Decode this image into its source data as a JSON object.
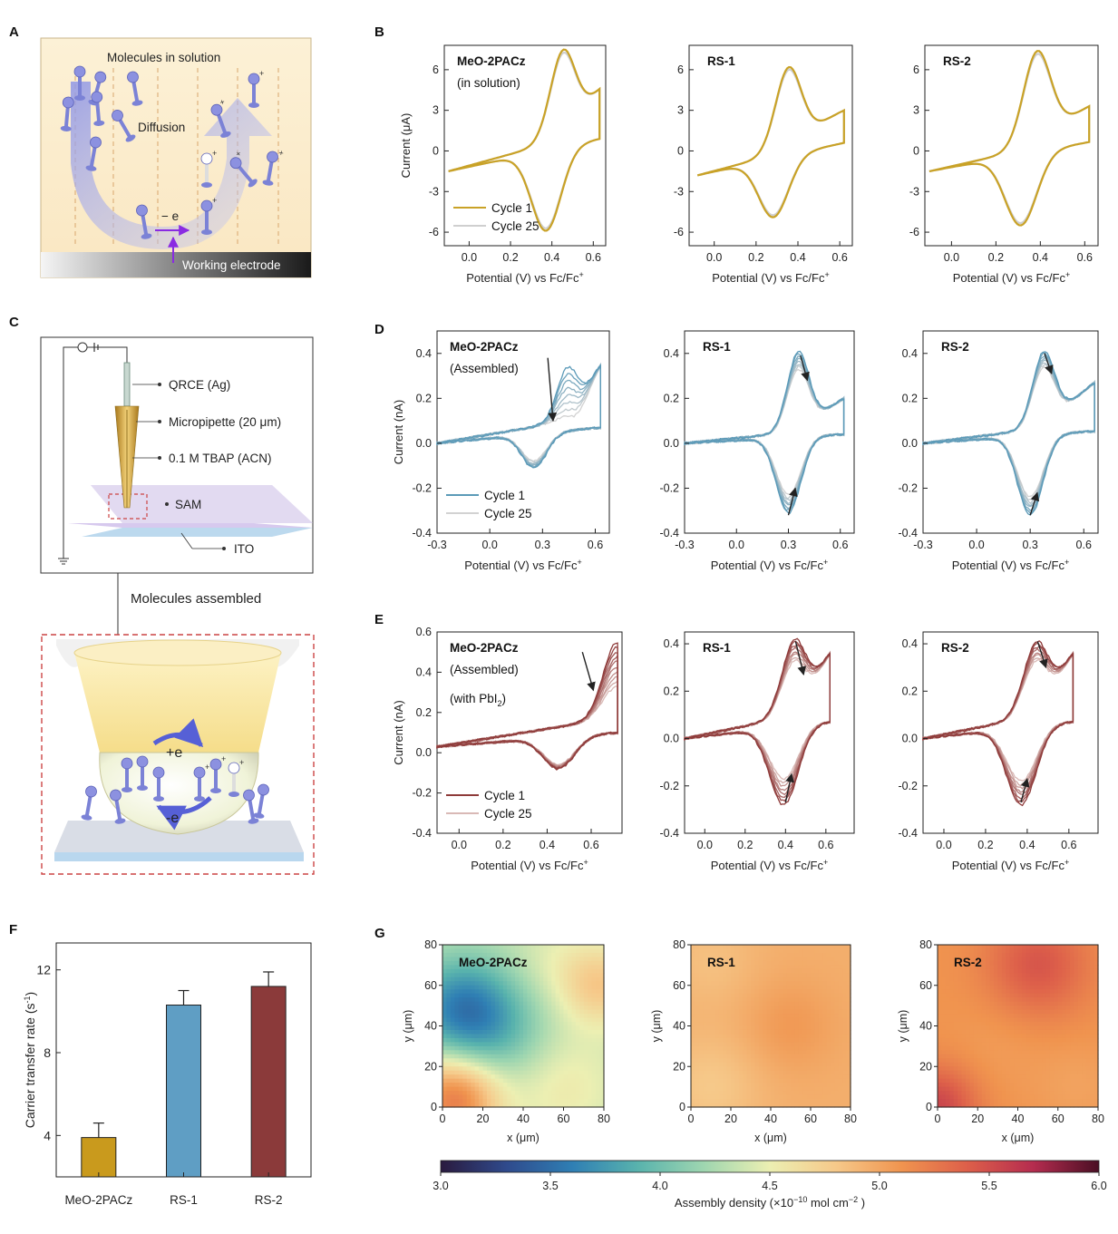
{
  "panel_letters": {
    "A": "A",
    "B": "B",
    "C": "C",
    "D": "D",
    "E": "E",
    "F": "F",
    "G": "G"
  },
  "schematic_a": {
    "title": "Molecules in solution",
    "diffusion": "Diffusion",
    "electron": "− e",
    "electrode": "Working electrode"
  },
  "schematic_c": {
    "qrce": "QRCE (Ag)",
    "micropipette": "Micropipette (20 μm)",
    "electrolyte": "0.1 M TBAP (ACN)",
    "sam": "SAM",
    "ito": "ITO",
    "caption": "Molecules assembled",
    "plus_e": "+e",
    "minus_e": "-e"
  },
  "colorbar": {
    "ticks": [
      "3.0",
      "3.5",
      "4.0",
      "4.5",
      "5.0",
      "5.5",
      "6.0"
    ],
    "label": "Assembly density (×10",
    "label_exp": "−10",
    "label_tail": " mol cm",
    "label_exp2": "−2",
    "label_end": " )",
    "stops": [
      "#2a1a3e",
      "#2f4a8c",
      "#2f7fb4",
      "#59b3ad",
      "#9fd6b0",
      "#ecefb2",
      "#f6c98a",
      "#f0944f",
      "#dd5f4a",
      "#b52c4f",
      "#4a0f24"
    ]
  },
  "chart_data": [
    {
      "id": "B1",
      "type": "line",
      "title": "MeO-2PACz",
      "subtitle": "(in solution)",
      "xlabel": "Potential (V) vs Fc/Fc",
      "xlabel_sup": "+",
      "ylabel": "Current (μA)",
      "xlim": [
        -0.12,
        0.66
      ],
      "ylim": [
        -7,
        7.8
      ],
      "xticks": [
        "0.0",
        "0.2",
        "0.4",
        "0.6"
      ],
      "xtick_vals": [
        0.0,
        0.2,
        0.4,
        0.6
      ],
      "yticks": [
        "-6",
        "-3",
        "0",
        "3",
        "6"
      ],
      "ytick_vals": [
        -6,
        -3,
        0,
        3,
        6
      ],
      "cv": {
        "xmin": -0.1,
        "xmax": 0.63,
        "epa": 0.46,
        "ipa": 7.5,
        "epc": 0.37,
        "ipc": -5.9,
        "istart": -1.5,
        "iend": 4.5
      },
      "cycles": 2,
      "color_first": "#c9a227",
      "color_last": "#cfcfcf",
      "legend": [
        "Cycle 1",
        "Cycle 25"
      ]
    },
    {
      "id": "B2",
      "type": "line",
      "title": "RS-1",
      "subtitle": "",
      "xlabel": "Potential (V) vs Fc/Fc",
      "xlabel_sup": "+",
      "ylabel": "",
      "xlim": [
        -0.12,
        0.66
      ],
      "ylim": [
        -7,
        7.8
      ],
      "xticks": [
        "0.0",
        "0.2",
        "0.4",
        "0.6"
      ],
      "xtick_vals": [
        0.0,
        0.2,
        0.4,
        0.6
      ],
      "yticks": [
        "-6",
        "-3",
        "0",
        "3",
        "6"
      ],
      "ytick_vals": [
        -6,
        -3,
        0,
        3,
        6
      ],
      "cv": {
        "xmin": -0.08,
        "xmax": 0.62,
        "epa": 0.36,
        "ipa": 6.2,
        "epc": 0.28,
        "ipc": -4.9,
        "istart": -1.8,
        "iend": 3.0
      },
      "cycles": 2,
      "color_first": "#c9a227",
      "color_last": "#cfcfcf",
      "legend": []
    },
    {
      "id": "B3",
      "type": "line",
      "title": "RS-2",
      "subtitle": "",
      "xlabel": "Potential (V) vs Fc/Fc",
      "xlabel_sup": "+",
      "ylabel": "",
      "xlim": [
        -0.12,
        0.66
      ],
      "ylim": [
        -7,
        7.8
      ],
      "xticks": [
        "0.0",
        "0.2",
        "0.4",
        "0.6"
      ],
      "xtick_vals": [
        0.0,
        0.2,
        0.4,
        0.6
      ],
      "yticks": [
        "-6",
        "-3",
        "0",
        "3",
        "6"
      ],
      "ytick_vals": [
        -6,
        -3,
        0,
        3,
        6
      ],
      "cv": {
        "xmin": -0.1,
        "xmax": 0.62,
        "epa": 0.39,
        "ipa": 7.4,
        "epc": 0.31,
        "ipc": -5.5,
        "istart": -1.5,
        "iend": 3.3
      },
      "cycles": 2,
      "color_first": "#c9a227",
      "color_last": "#cfcfcf",
      "legend": []
    },
    {
      "id": "D1",
      "type": "line",
      "title": "MeO-2PACz",
      "subtitle": "(Assembled)",
      "xlabel": "Potential (V) vs Fc/Fc",
      "xlabel_sup": "+",
      "ylabel": "Current (nA)",
      "xlim": [
        -0.3,
        0.68
      ],
      "ylim": [
        -0.4,
        0.5
      ],
      "xticks": [
        "-0.3",
        "0.0",
        "0.3",
        "0.6"
      ],
      "xtick_vals": [
        -0.3,
        0.0,
        0.3,
        0.6
      ],
      "yticks": [
        "-0.4",
        "-0.2",
        "0.0",
        "0.2",
        "0.4"
      ],
      "ytick_vals": [
        -0.4,
        -0.2,
        0.0,
        0.2,
        0.4
      ],
      "cv": {
        "xmin": -0.3,
        "xmax": 0.63,
        "epa": 0.45,
        "ipa": 0.34,
        "epc": 0.25,
        "ipc": -0.11,
        "istart": 0.0,
        "iend": 0.35
      },
      "cv_last": {
        "ipa": 0.12,
        "ipc": -0.08
      },
      "cycles": 8,
      "color_first": "#5b9ab8",
      "color_last": "#d2d2d2",
      "arrows": [
        [
          0.33,
          0.38,
          0.36,
          0.1
        ]
      ],
      "legend": [
        "Cycle 1",
        "Cycle 25"
      ]
    },
    {
      "id": "D2",
      "type": "line",
      "title": "RS-1",
      "subtitle": "",
      "xlabel": "Potential (V) vs Fc/Fc",
      "xlabel_sup": "+",
      "ylabel": "",
      "xlim": [
        -0.3,
        0.68
      ],
      "ylim": [
        -0.4,
        0.5
      ],
      "xticks": [
        "-0.3",
        "0.0",
        "0.3",
        "0.6"
      ],
      "xtick_vals": [
        -0.3,
        0.0,
        0.3,
        0.6
      ],
      "yticks": [
        "-0.4",
        "-0.2",
        "0.0",
        "0.2",
        "0.4"
      ],
      "ytick_vals": [
        -0.4,
        -0.2,
        0.0,
        0.2,
        0.4
      ],
      "cv": {
        "xmin": -0.3,
        "xmax": 0.62,
        "epa": 0.36,
        "ipa": 0.41,
        "epc": 0.3,
        "ipc": -0.31,
        "istart": 0.0,
        "iend": 0.2
      },
      "cv_last": {
        "ipa": 0.33,
        "ipc": -0.23
      },
      "cycles": 8,
      "color_first": "#5b9ab8",
      "color_last": "#d2d2d2",
      "arrows": [
        [
          0.37,
          0.39,
          0.41,
          0.28
        ],
        [
          0.3,
          -0.32,
          0.34,
          -0.2
        ]
      ],
      "legend": []
    },
    {
      "id": "D3",
      "type": "line",
      "title": "RS-2",
      "subtitle": "",
      "xlabel": "Potential (V) vs Fc/Fc",
      "xlabel_sup": "+",
      "ylabel": "",
      "xlim": [
        -0.3,
        0.68
      ],
      "ylim": [
        -0.4,
        0.5
      ],
      "xticks": [
        "-0.3",
        "0.0",
        "0.3",
        "0.6"
      ],
      "xtick_vals": [
        -0.3,
        0.0,
        0.3,
        0.6
      ],
      "yticks": [
        "-0.4",
        "-0.2",
        "0.0",
        "0.2",
        "0.4"
      ],
      "ytick_vals": [
        -0.4,
        -0.2,
        0.0,
        0.2,
        0.4
      ],
      "cv": {
        "xmin": -0.3,
        "xmax": 0.66,
        "epa": 0.38,
        "ipa": 0.41,
        "epc": 0.3,
        "ipc": -0.32,
        "istart": 0.0,
        "iend": 0.27
      },
      "cv_last": {
        "ipa": 0.34,
        "ipc": -0.24
      },
      "cycles": 8,
      "color_first": "#5b9ab8",
      "color_last": "#d2d2d2",
      "arrows": [
        [
          0.38,
          0.4,
          0.42,
          0.31
        ],
        [
          0.3,
          -0.32,
          0.34,
          -0.22
        ]
      ],
      "legend": []
    },
    {
      "id": "E1",
      "type": "line",
      "title": "MeO-2PACz",
      "subtitle": "(Assembled)",
      "subtitle2": "(with PbI",
      "subtitle2_sub": "2",
      "subtitle2_end": ")",
      "xlabel": "Potential (V) vs Fc/Fc",
      "xlabel_sup": "+",
      "ylabel": "Current (nA)",
      "xlim": [
        -0.1,
        0.74
      ],
      "ylim": [
        -0.4,
        0.6
      ],
      "xticks": [
        "0.0",
        "0.2",
        "0.4",
        "0.6"
      ],
      "xtick_vals": [
        0.0,
        0.2,
        0.4,
        0.6
      ],
      "yticks": [
        "-0.4",
        "-0.2",
        "0.0",
        "0.2",
        "0.4",
        "0.6"
      ],
      "ytick_vals": [
        -0.4,
        -0.2,
        0.0,
        0.2,
        0.4,
        0.6
      ],
      "cv": {
        "xmin": -0.1,
        "xmax": 0.72,
        "epa": 0.72,
        "ipa": 0.55,
        "epc": 0.45,
        "ipc": -0.08,
        "istart": 0.03,
        "iend": 0.5
      },
      "cv_last": {
        "ipa": 0.33,
        "ipc": -0.06
      },
      "cycles": 10,
      "color_first": "#8e3a39",
      "color_last": "#d9b9b6",
      "arrows": [
        [
          0.56,
          0.5,
          0.61,
          0.31
        ]
      ],
      "legend": [
        "Cycle 1",
        "Cycle 25"
      ]
    },
    {
      "id": "E2",
      "type": "line",
      "title": "RS-1",
      "subtitle": "",
      "xlabel": "Potential (V) vs Fc/Fc",
      "xlabel_sup": "+",
      "ylabel": "",
      "xlim": [
        -0.1,
        0.74
      ],
      "ylim": [
        -0.4,
        0.45
      ],
      "xticks": [
        "0.0",
        "0.2",
        "0.4",
        "0.6"
      ],
      "xtick_vals": [
        0.0,
        0.2,
        0.4,
        0.6
      ],
      "yticks": [
        "-0.4",
        "-0.2",
        "0.0",
        "0.2",
        "0.4"
      ],
      "ytick_vals": [
        -0.4,
        -0.2,
        0.0,
        0.2,
        0.4
      ],
      "cv": {
        "xmin": -0.1,
        "xmax": 0.62,
        "epa": 0.45,
        "ipa": 0.42,
        "epc": 0.39,
        "ipc": -0.28,
        "istart": 0.0,
        "iend": 0.36
      },
      "cv_last": {
        "ipa": 0.33,
        "ipc": -0.17
      },
      "cycles": 8,
      "color_first": "#8e3a39",
      "color_last": "#d9b9b6",
      "arrows": [
        [
          0.45,
          0.41,
          0.49,
          0.27
        ],
        [
          0.4,
          -0.27,
          0.43,
          -0.15
        ]
      ],
      "legend": []
    },
    {
      "id": "E3",
      "type": "line",
      "title": "RS-2",
      "subtitle": "",
      "xlabel": "Potential (V) vs Fc/Fc",
      "xlabel_sup": "+",
      "ylabel": "",
      "xlim": [
        -0.1,
        0.74
      ],
      "ylim": [
        -0.4,
        0.45
      ],
      "xticks": [
        "0.0",
        "0.2",
        "0.4",
        "0.6"
      ],
      "xtick_vals": [
        0.0,
        0.2,
        0.4,
        0.6
      ],
      "yticks": [
        "-0.4",
        "-0.2",
        "0.0",
        "0.2",
        "0.4"
      ],
      "ytick_vals": [
        -0.4,
        -0.2,
        0.0,
        0.2,
        0.4
      ],
      "cv": {
        "xmin": -0.1,
        "xmax": 0.62,
        "epa": 0.45,
        "ipa": 0.41,
        "epc": 0.37,
        "ipc": -0.28,
        "istart": 0.0,
        "iend": 0.36
      },
      "cv_last": {
        "ipa": 0.33,
        "ipc": -0.18
      },
      "cycles": 8,
      "color_first": "#8e3a39",
      "color_last": "#d9b9b6",
      "arrows": [
        [
          0.45,
          0.41,
          0.49,
          0.3
        ],
        [
          0.37,
          -0.27,
          0.4,
          -0.17
        ]
      ],
      "legend": []
    },
    {
      "id": "F",
      "type": "bar",
      "categories": [
        "MeO-2PACz",
        "RS-1",
        "RS-2"
      ],
      "values": [
        3.9,
        10.3,
        11.2
      ],
      "errors": [
        0.7,
        0.7,
        0.7
      ],
      "colors": [
        "#c99a1d",
        "#5f9ec4",
        "#8b3a3a"
      ],
      "ylabel": "Carrier transfer rate (s",
      "ylabel_sup": "-1",
      "ylabel_end": ")",
      "ylim": [
        2.0,
        13.3
      ],
      "yticks": [
        "4",
        "8",
        "12"
      ],
      "ytick_vals": [
        4,
        8,
        12
      ]
    },
    {
      "id": "G1",
      "type": "heatmap",
      "title": "MeO-2PACz",
      "xlabel": "x (μm)",
      "ylabel": "y (μm)",
      "xticks": [
        "0",
        "20",
        "40",
        "60",
        "80"
      ],
      "yticks": [
        "0",
        "20",
        "40",
        "60",
        "80"
      ],
      "xlim": [
        0,
        80
      ],
      "ylim": [
        0,
        80
      ],
      "base": 4.35,
      "blobs": [
        [
          10,
          48,
          -0.75,
          18
        ],
        [
          30,
          35,
          -0.25,
          18
        ],
        [
          6,
          4,
          0.9,
          16
        ],
        [
          78,
          60,
          0.45,
          14
        ],
        [
          60,
          10,
          0.2,
          18
        ],
        [
          55,
          72,
          0.1,
          14
        ]
      ]
    },
    {
      "id": "G2",
      "type": "heatmap",
      "title": "RS-1",
      "xlabel": "x (μm)",
      "ylabel": "y (μm)",
      "xticks": [
        "0",
        "20",
        "40",
        "60",
        "80"
      ],
      "yticks": [
        "0",
        "20",
        "40",
        "60",
        "80"
      ],
      "xlim": [
        0,
        80
      ],
      "ylim": [
        0,
        80
      ],
      "base": 4.95,
      "blobs": [
        [
          50,
          40,
          0.12,
          16
        ],
        [
          10,
          10,
          -0.15,
          18
        ],
        [
          10,
          72,
          -0.1,
          16
        ]
      ]
    },
    {
      "id": "G3",
      "type": "heatmap",
      "title": "RS-2",
      "xlabel": "x (μm)",
      "ylabel": "y (μm)",
      "xticks": [
        "0",
        "20",
        "40",
        "60",
        "80"
      ],
      "yticks": [
        "0",
        "20",
        "40",
        "60",
        "80"
      ],
      "xlim": [
        0,
        80
      ],
      "ylim": [
        0,
        80
      ],
      "base": 5.1,
      "blobs": [
        [
          50,
          70,
          0.35,
          18
        ],
        [
          0,
          0,
          0.45,
          14
        ],
        [
          30,
          30,
          -0.05,
          18
        ],
        [
          70,
          10,
          -0.08,
          16
        ]
      ]
    }
  ]
}
